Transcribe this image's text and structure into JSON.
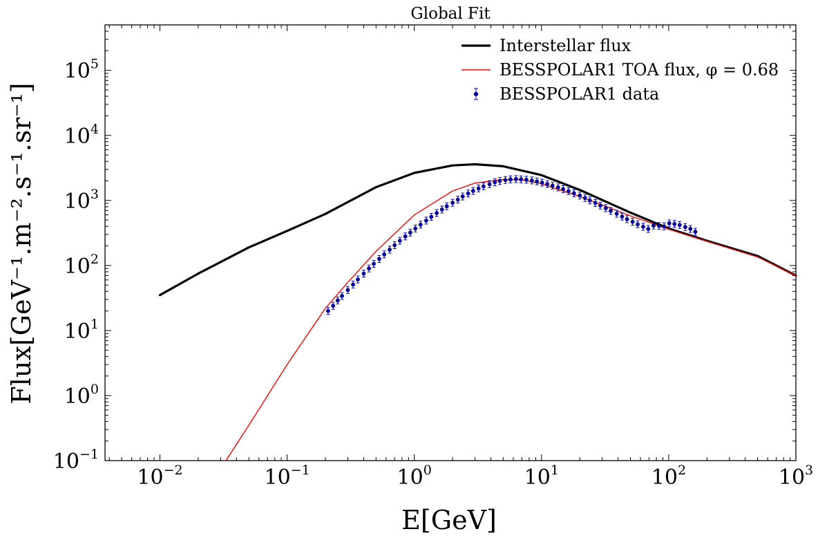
{
  "chart_data": {
    "type": "line",
    "title": "Global Fit",
    "xlabel": "E[GeV]",
    "ylabel": "Flux[GeV⁻¹.m⁻².s⁻¹.sr⁻¹]",
    "xscale": "log",
    "yscale": "log",
    "xlim": [
      0.0037,
      1000
    ],
    "ylim": [
      0.1,
      500000
    ],
    "x_ticks": [
      "10^-2",
      "10^-1",
      "10^0",
      "10^1",
      "10^2",
      "10^3"
    ],
    "y_ticks": [
      "10^-1",
      "10^0",
      "10^1",
      "10^2",
      "10^3",
      "10^4",
      "10^5"
    ],
    "legend_position": "top-right",
    "grid": false,
    "series": [
      {
        "name": "Interstellar flux",
        "kind": "line",
        "color": "#000000",
        "x": [
          0.01,
          0.02,
          0.05,
          0.1,
          0.2,
          0.5,
          1,
          2,
          3,
          5,
          10,
          20,
          50,
          100,
          200,
          500,
          1000
        ],
        "y": [
          35,
          75,
          190,
          340,
          620,
          1600,
          2650,
          3450,
          3600,
          3350,
          2450,
          1450,
          650,
          370,
          240,
          140,
          70
        ]
      },
      {
        "name": "BESSPOLAR1 TOA flux, φ = 0.68",
        "kind": "line",
        "color": "#ff0000",
        "x": [
          0.033,
          0.05,
          0.1,
          0.2,
          0.3,
          0.5,
          1,
          2,
          3,
          5,
          7,
          10,
          20,
          50,
          100,
          200,
          500,
          1000
        ],
        "y": [
          0.1,
          0.35,
          3,
          22,
          55,
          165,
          600,
          1400,
          1850,
          2100,
          2080,
          1800,
          1150,
          580,
          360,
          235,
          135,
          70
        ]
      },
      {
        "name": "BESSPOLAR1 data",
        "kind": "errorbar",
        "color": "#0000cc",
        "x": [
          0.21,
          0.23,
          0.25,
          0.27,
          0.3,
          0.33,
          0.36,
          0.4,
          0.44,
          0.48,
          0.53,
          0.58,
          0.64,
          0.7,
          0.77,
          0.85,
          0.93,
          1.02,
          1.12,
          1.24,
          1.36,
          1.5,
          1.65,
          1.8,
          2.0,
          2.2,
          2.4,
          2.65,
          2.9,
          3.2,
          3.5,
          3.9,
          4.3,
          4.7,
          5.2,
          5.7,
          6.3,
          6.9,
          7.6,
          8.4,
          9.2,
          10.1,
          11.1,
          12.2,
          13.5,
          14.8,
          16.3,
          18,
          20,
          22,
          24,
          26.5,
          29,
          32,
          35,
          39,
          43,
          47,
          52,
          57,
          63,
          69,
          76,
          84,
          92,
          101,
          111,
          122,
          135,
          148,
          162
        ],
        "y": [
          20,
          24,
          29,
          34,
          42,
          51,
          61,
          75,
          90,
          106,
          126,
          148,
          175,
          205,
          240,
          280,
          320,
          370,
          425,
          490,
          560,
          640,
          725,
          815,
          920,
          1030,
          1150,
          1280,
          1400,
          1530,
          1650,
          1780,
          1900,
          1990,
          2060,
          2110,
          2130,
          2110,
          2080,
          2030,
          1960,
          1880,
          1790,
          1690,
          1590,
          1490,
          1390,
          1290,
          1190,
          1090,
          1000,
          915,
          835,
          760,
          690,
          625,
          565,
          515,
          470,
          430,
          395,
          365,
          410,
          405,
          400,
          445,
          435,
          420,
          390,
          365,
          330
        ]
      }
    ]
  }
}
